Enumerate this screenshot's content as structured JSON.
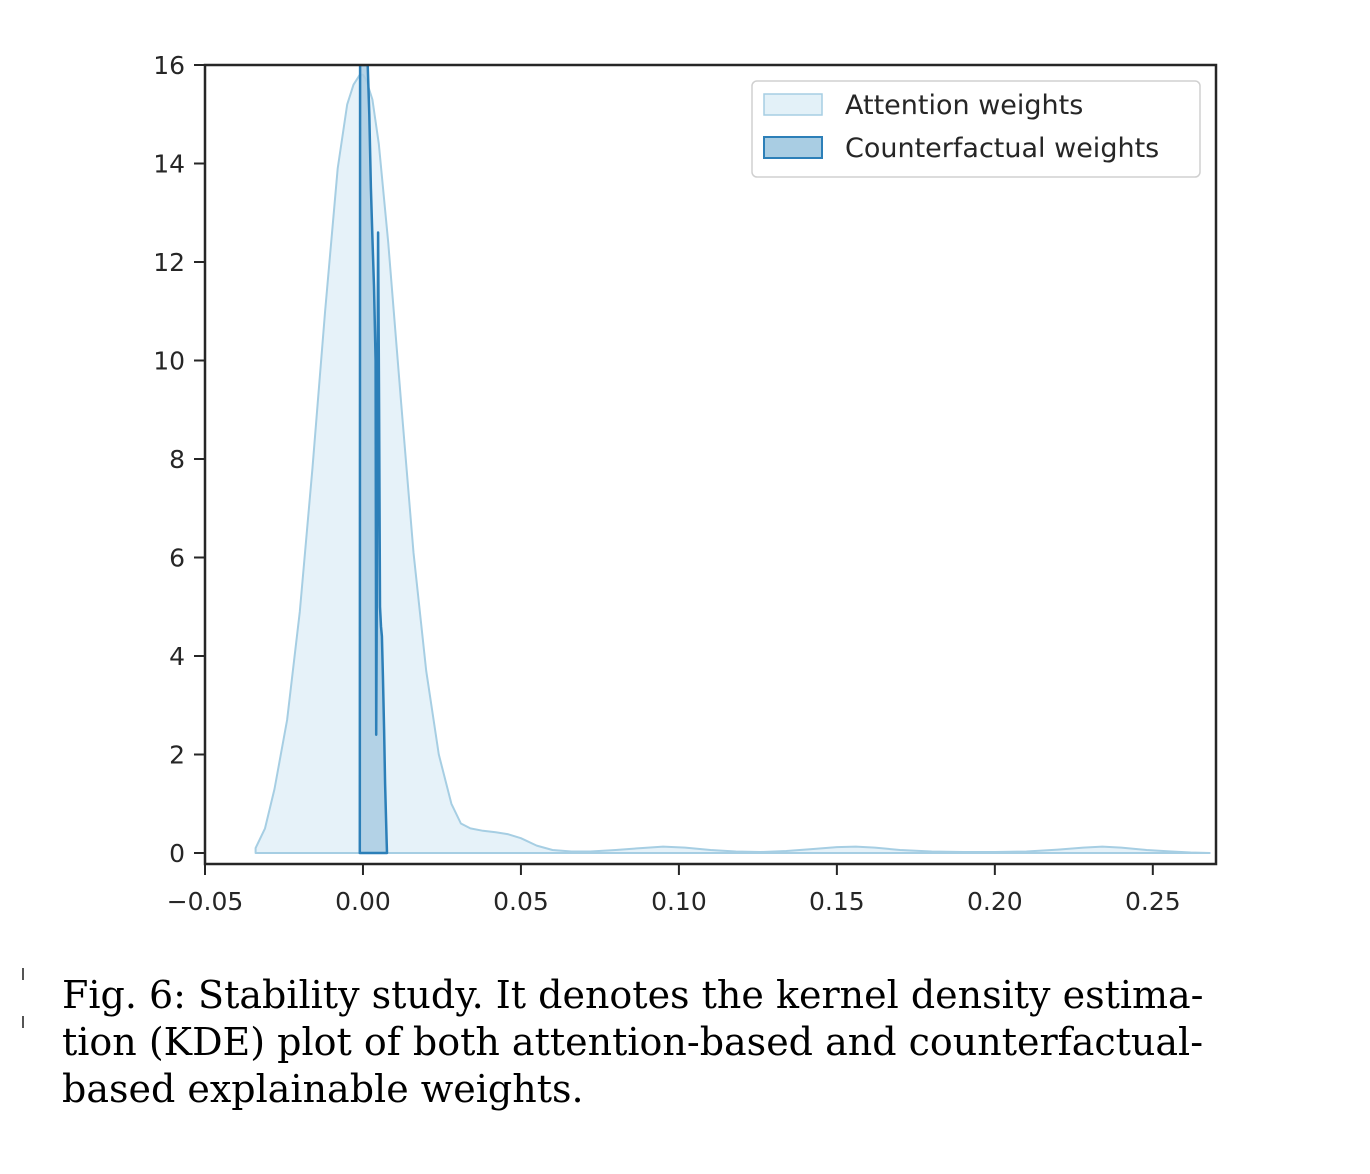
{
  "chart_data": {
    "type": "area",
    "title": "",
    "xlabel": "",
    "ylabel": "",
    "xlim": [
      -0.05,
      0.27
    ],
    "ylim": [
      -0.2,
      16
    ],
    "x_ticks": [
      -0.05,
      0.0,
      0.05,
      0.1,
      0.15,
      0.2,
      0.25
    ],
    "x_tick_labels": [
      "−0.05",
      "0.00",
      "0.05",
      "0.10",
      "0.15",
      "0.20",
      "0.25"
    ],
    "y_ticks": [
      0,
      2,
      4,
      6,
      8,
      10,
      12,
      14,
      16
    ],
    "y_tick_labels": [
      "0",
      "2",
      "4",
      "6",
      "8",
      "10",
      "12",
      "14",
      "16"
    ],
    "grid": false,
    "legend_position": "top-right",
    "series": [
      {
        "name": "Attention weights",
        "color": "#a6cee3",
        "fill": "#e3f1f8",
        "x": [
          -0.034,
          -0.031,
          -0.028,
          -0.024,
          -0.02,
          -0.016,
          -0.012,
          -0.008,
          -0.005,
          -0.003,
          -0.001,
          0.0,
          0.001,
          0.003,
          0.005,
          0.008,
          0.012,
          0.016,
          0.02,
          0.024,
          0.028,
          0.031,
          0.034,
          0.038,
          0.042,
          0.046,
          0.05,
          0.055,
          0.06,
          0.066,
          0.072,
          0.08,
          0.088,
          0.095,
          0.102,
          0.11,
          0.118,
          0.126,
          0.134,
          0.142,
          0.15,
          0.156,
          0.162,
          0.17,
          0.18,
          0.19,
          0.2,
          0.21,
          0.22,
          0.228,
          0.234,
          0.24,
          0.248,
          0.256,
          0.262,
          0.268
        ],
        "y": [
          0.1,
          0.5,
          1.3,
          2.7,
          4.9,
          7.8,
          11.0,
          13.9,
          15.2,
          15.6,
          15.8,
          15.8,
          15.7,
          15.3,
          14.4,
          12.4,
          9.2,
          6.1,
          3.7,
          2.0,
          1.0,
          0.6,
          0.5,
          0.45,
          0.42,
          0.38,
          0.3,
          0.15,
          0.06,
          0.03,
          0.03,
          0.06,
          0.1,
          0.13,
          0.11,
          0.06,
          0.03,
          0.02,
          0.04,
          0.08,
          0.12,
          0.13,
          0.11,
          0.06,
          0.03,
          0.02,
          0.02,
          0.03,
          0.07,
          0.11,
          0.13,
          0.11,
          0.06,
          0.03,
          0.01,
          0.0
        ]
      },
      {
        "name": "Counterfactual weights",
        "color": "#2c7fb8",
        "fill": "#a9cde3",
        "x": [
          -0.001,
          -0.0009,
          -0.0005,
          0.0,
          0.0005,
          0.001,
          0.0015,
          0.002,
          0.0025,
          0.003,
          0.0035,
          0.004,
          0.0042,
          0.0045,
          0.0048,
          0.0051,
          0.0054,
          0.0057,
          0.006,
          0.0063,
          0.0067,
          0.007,
          0.0075,
          0.0076
        ],
        "y": [
          0.0,
          16.0,
          16.0,
          16.0,
          16.0,
          16.0,
          16.0,
          15.0,
          13.5,
          12.5,
          11.5,
          10.0,
          2.4,
          7.0,
          12.6,
          9.0,
          5.0,
          4.6,
          4.4,
          3.6,
          2.5,
          1.4,
          0.2,
          0.0
        ]
      }
    ]
  },
  "caption": {
    "line1": "Fig. 6: Stability study. It denotes the kernel density estima-",
    "line2": "tion (KDE) plot of both attention-based and counterfactual-",
    "line3": "based explainable weights."
  }
}
